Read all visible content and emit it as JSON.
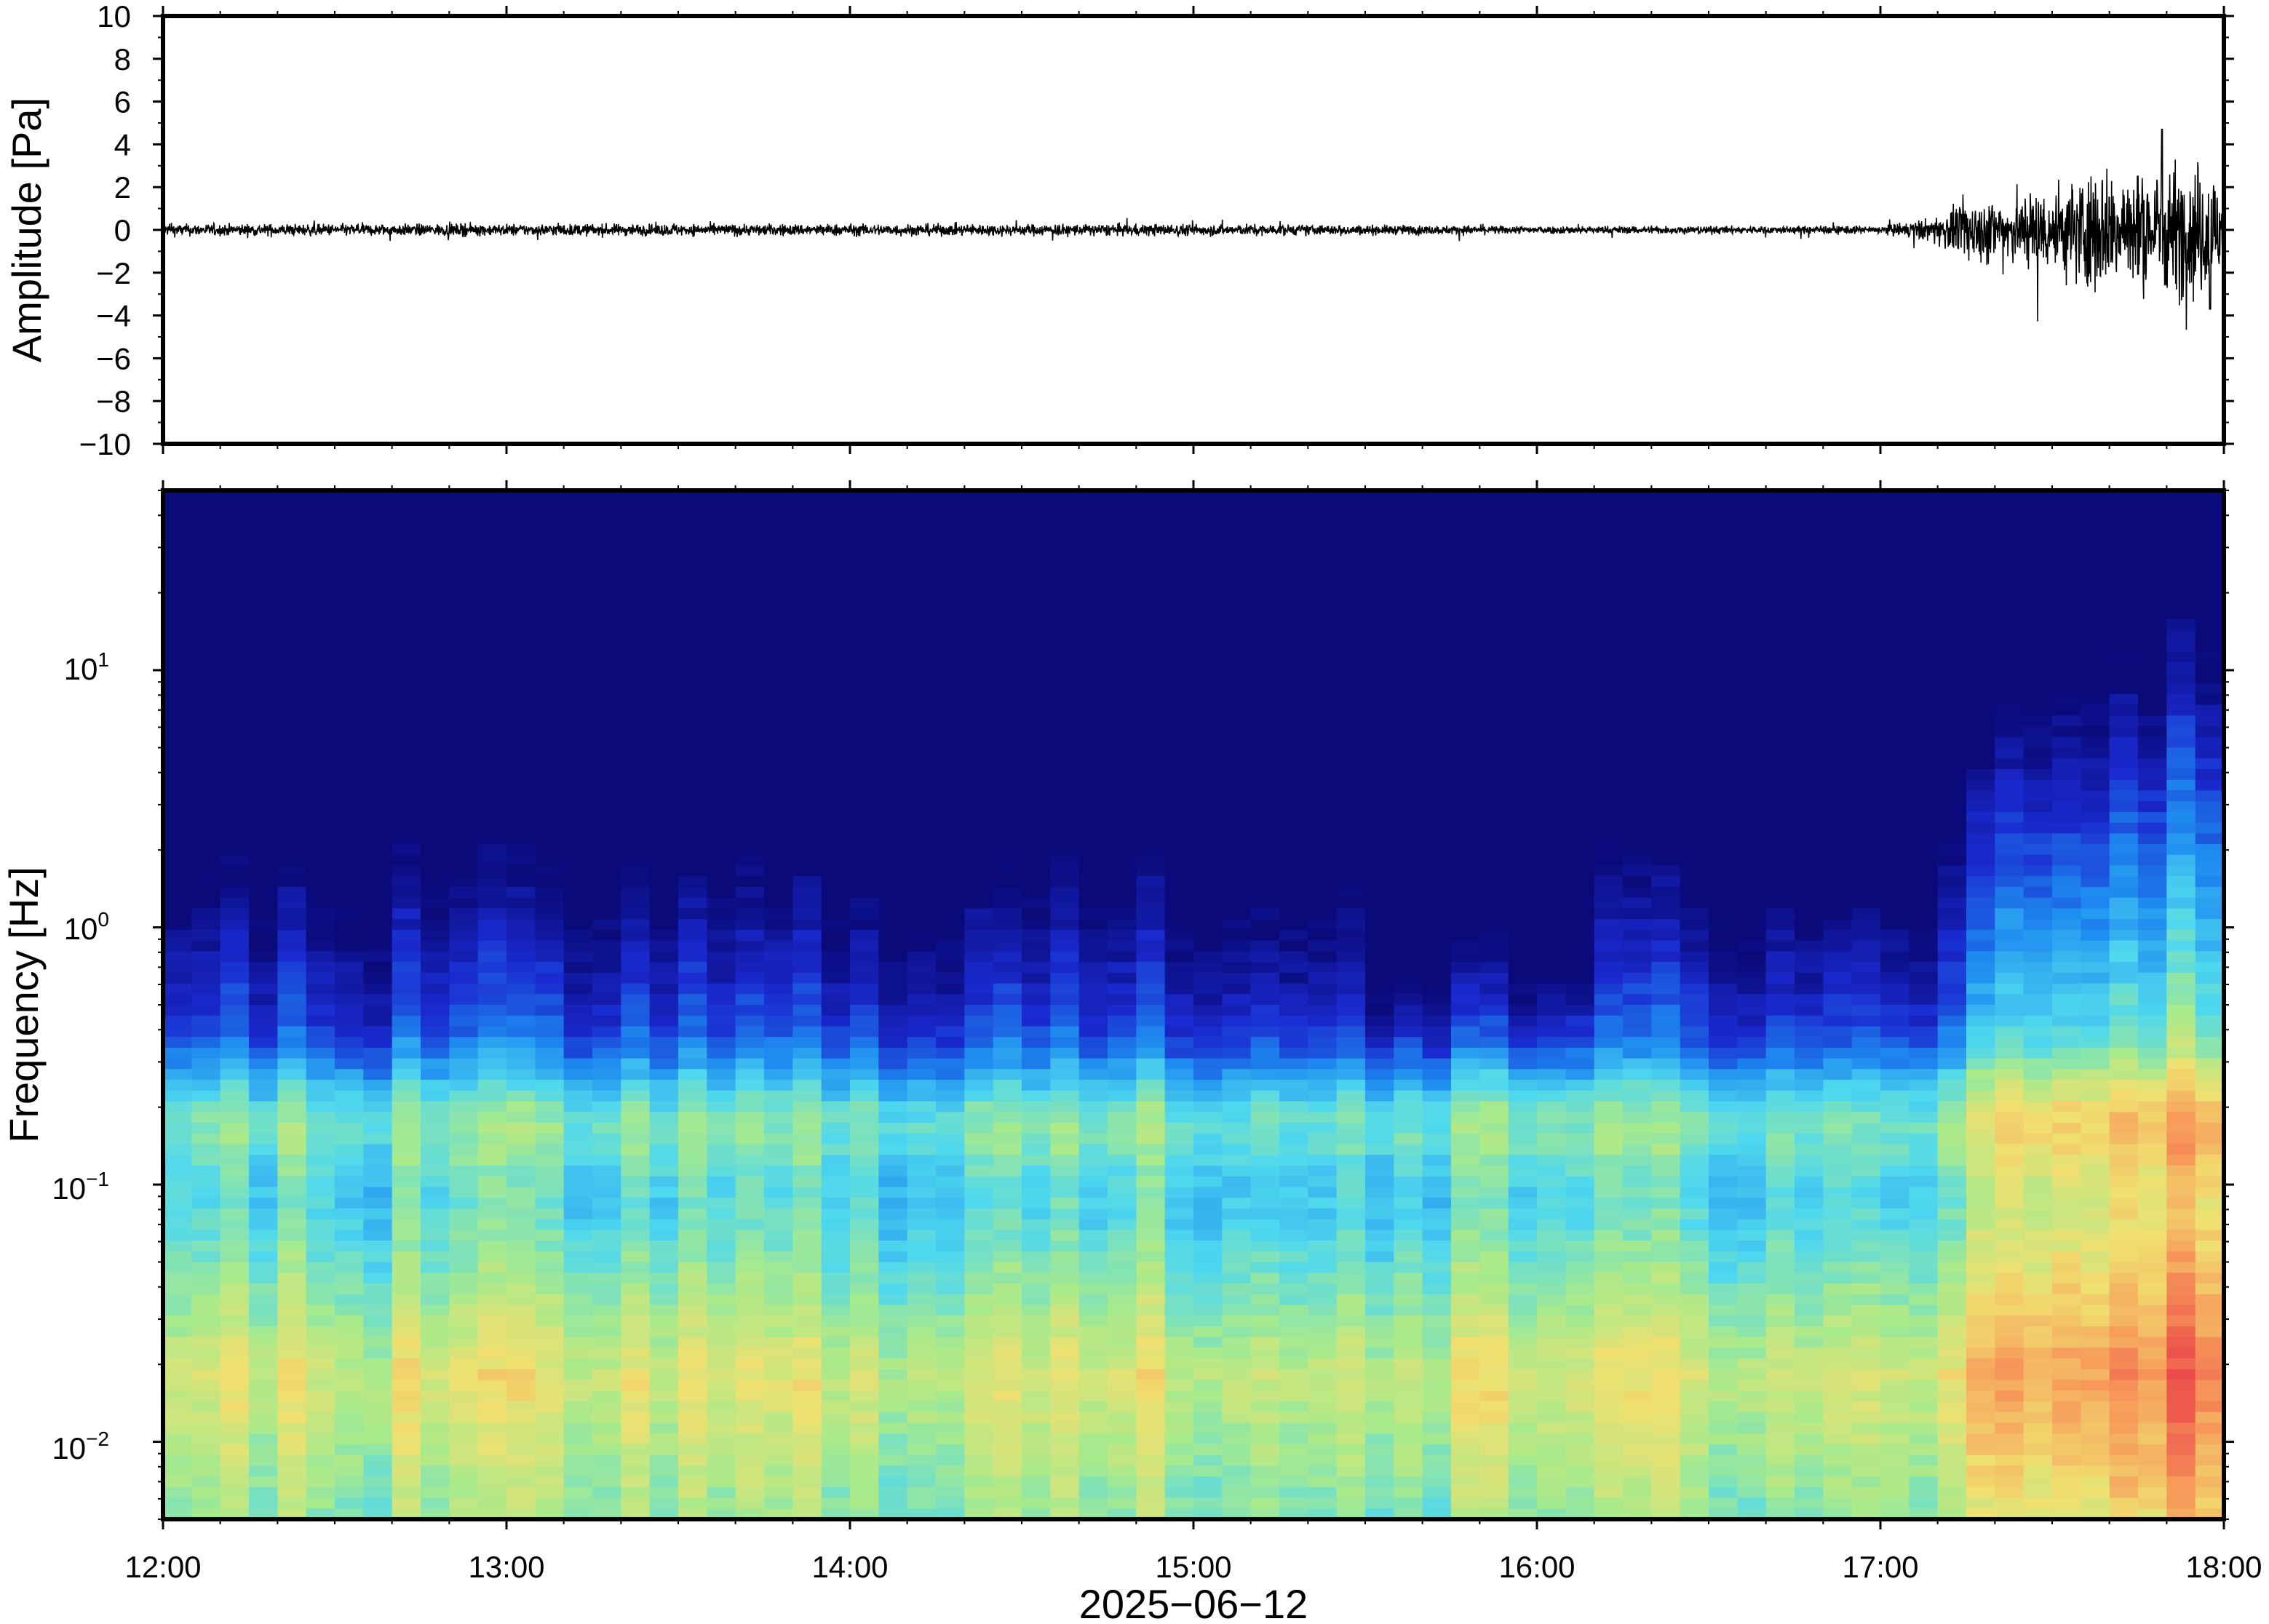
{
  "chart_data": [
    {
      "type": "line",
      "panel": "waveform",
      "ylabel": "Amplitude [Pa]",
      "ylim": [
        -10,
        10
      ],
      "yticks": [
        10,
        8,
        6,
        4,
        2,
        0,
        -2,
        -4,
        -6,
        -8,
        -10
      ],
      "ytick_labels": [
        "10",
        "8",
        "6",
        "4",
        "2",
        "0",
        "−2",
        "−4",
        "−6",
        "−8",
        "−10"
      ],
      "xlim": [
        "12:00",
        "18:00"
      ],
      "grid": false,
      "series": [
        {
          "color": "#000000",
          "envelope_hours": [
            12.0,
            13.0,
            14.0,
            15.0,
            16.0,
            17.0,
            17.15,
            17.25,
            17.4,
            17.5,
            17.6,
            17.75,
            17.9,
            18.0
          ],
          "envelope_amplitude": [
            0.3,
            0.3,
            0.3,
            0.3,
            0.2,
            0.2,
            0.6,
            1.5,
            1.8,
            2.2,
            3.0,
            3.0,
            3.5,
            3.0
          ],
          "peak": {
            "hour": 17.82,
            "value": 4.7
          },
          "trough": {
            "hour": 17.96,
            "value": -3.7
          }
        }
      ]
    },
    {
      "type": "heatmap",
      "panel": "spectrogram",
      "ylabel": "Frequency [Hz]",
      "yscale": "log",
      "ylim": [
        0.005,
        50
      ],
      "yticks": [
        0.01,
        0.1,
        1,
        10
      ],
      "ytick_labels": [
        {
          "base": "10",
          "exp": "−2"
        },
        {
          "base": "10",
          "exp": "−1"
        },
        {
          "base": "10",
          "exp": "0"
        },
        {
          "base": "10",
          "exp": "1"
        }
      ],
      "xlabel": "2025−06−12",
      "xticks": [
        "12:00",
        "13:00",
        "14:00",
        "15:00",
        "16:00",
        "17:00",
        "18:00"
      ],
      "xlim": [
        "12:00",
        "18:00"
      ],
      "colormap": "jet",
      "colors": [
        "#0a0a7a",
        "#1a2ad0",
        "#1e8cf0",
        "#4fd8ee",
        "#a8ea8c",
        "#f0e070",
        "#f79a5a",
        "#ec4b4b"
      ],
      "features": {
        "microseism_band_hz": 0.18,
        "quiet_window_hours": [
          15.5,
          16.2
        ],
        "broadband_onset_hour": 17.15
      }
    }
  ]
}
